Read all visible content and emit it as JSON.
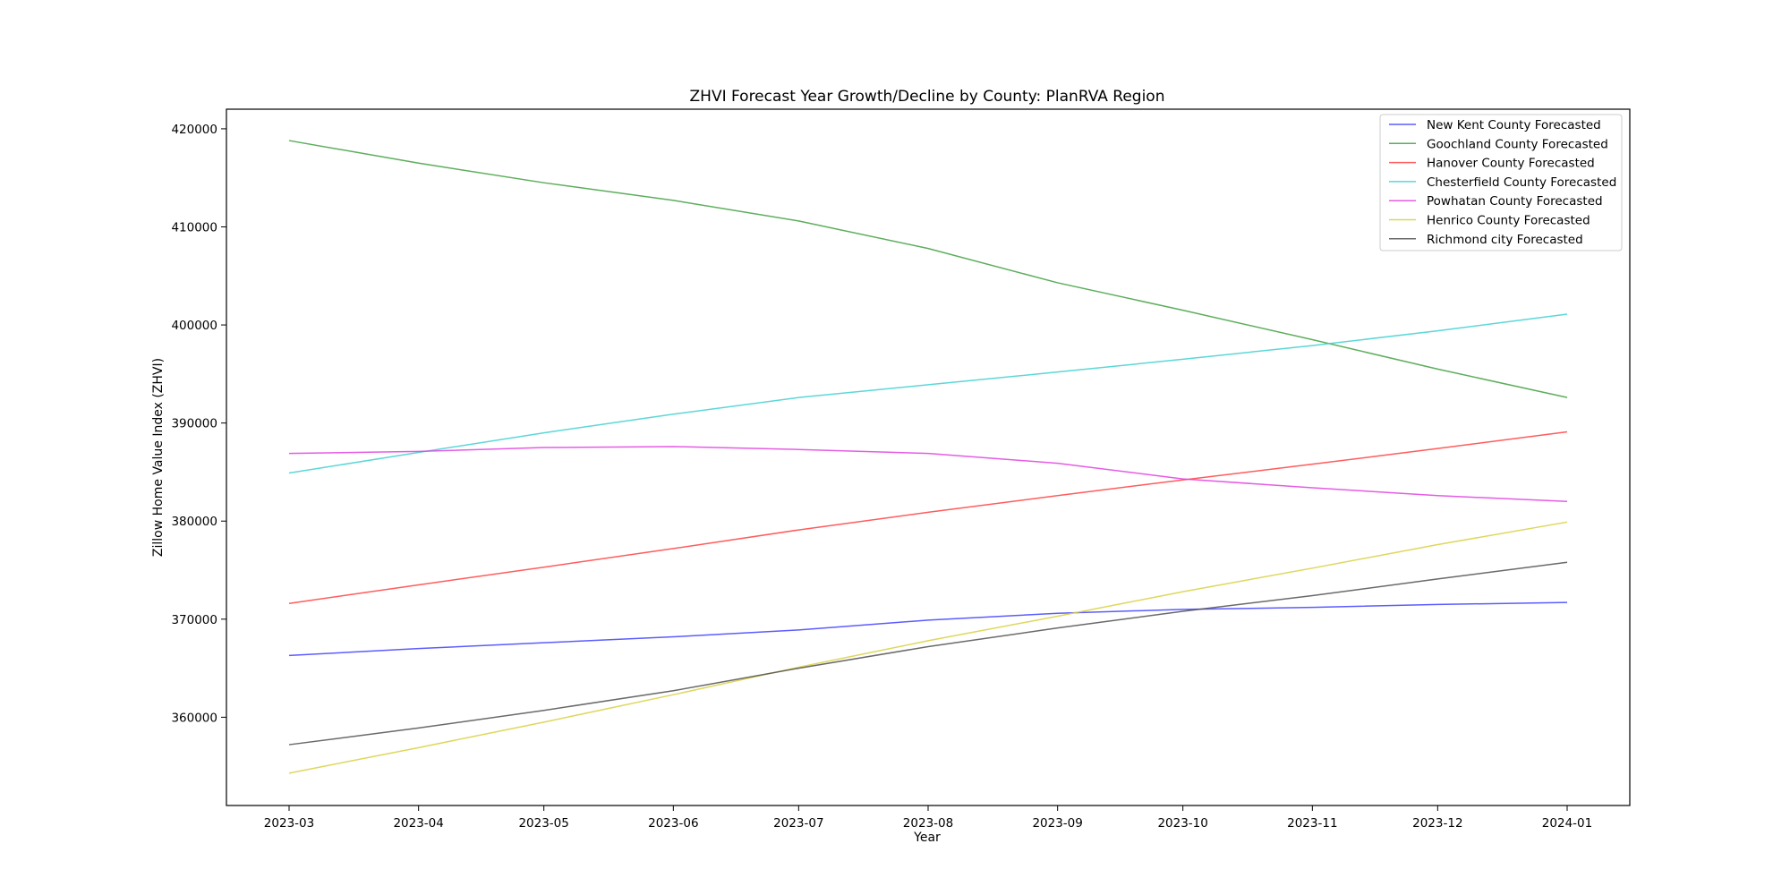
{
  "chart_data": {
    "type": "line",
    "title": "ZHVI Forecast Year Growth/Decline by County: PlanRVA Region",
    "xlabel": "Year",
    "ylabel": "Zillow Home Value Index (ZHVI)",
    "x_ticks": [
      "2023-03",
      "2023-04",
      "2023-05",
      "2023-06",
      "2023-07",
      "2023-08",
      "2023-09",
      "2023-10",
      "2023-11",
      "2023-12",
      "2024-01"
    ],
    "x": [
      "2023-02-28",
      "2023-03-31",
      "2023-04-30",
      "2023-05-31",
      "2023-06-30",
      "2023-07-31",
      "2023-08-31",
      "2023-09-30",
      "2023-10-31",
      "2023-11-30",
      "2023-12-31"
    ],
    "xlim": [
      "2023-02-13",
      "2024-01-15"
    ],
    "y_ticks": [
      360000,
      370000,
      380000,
      390000,
      400000,
      410000,
      420000
    ],
    "ylim": [
      351000,
      422000
    ],
    "grid": false,
    "legend_position": "top-right",
    "series": [
      {
        "name": "New Kent County Forecasted",
        "color": "#4040ff",
        "values": [
          366300,
          367000,
          367600,
          368200,
          368900,
          369900,
          370600,
          371000,
          371200,
          371500,
          371700
        ]
      },
      {
        "name": "Goochland County Forecasted",
        "color": "#40a040",
        "values": [
          418800,
          416500,
          414500,
          412700,
          410600,
          407800,
          404300,
          401500,
          398500,
          395500,
          392600
        ]
      },
      {
        "name": "Hanover County Forecasted",
        "color": "#ff4040",
        "values": [
          371600,
          373500,
          375300,
          377200,
          379100,
          380900,
          382600,
          384200,
          385800,
          387400,
          389100
        ]
      },
      {
        "name": "Chesterfield County Forecasted",
        "color": "#40d0d0",
        "values": [
          384900,
          387000,
          389000,
          390900,
          392600,
          393900,
          395200,
          396500,
          397900,
          399400,
          401100
        ]
      },
      {
        "name": "Powhatan County Forecasted",
        "color": "#e040e0",
        "values": [
          386900,
          387100,
          387500,
          387600,
          387300,
          386900,
          385900,
          384300,
          383400,
          382600,
          382000
        ]
      },
      {
        "name": "Henrico County Forecasted",
        "color": "#d8d040",
        "values": [
          354300,
          356900,
          359500,
          362300,
          365100,
          367800,
          370300,
          372800,
          375200,
          377600,
          379900
        ]
      },
      {
        "name": "Richmond city Forecasted",
        "color": "#505050",
        "values": [
          357200,
          358900,
          360700,
          362700,
          365000,
          367200,
          369100,
          370800,
          372400,
          374100,
          375800
        ]
      }
    ]
  }
}
